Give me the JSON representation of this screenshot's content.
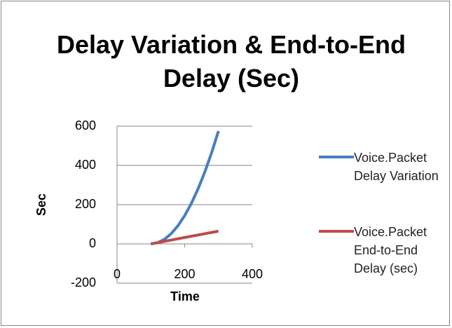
{
  "chart_data": {
    "type": "line",
    "title": "Delay Variation & End-to-End Delay (Sec)",
    "x_label": "Time",
    "y_label": "Sec",
    "x": [
      100,
      120,
      140,
      160,
      180,
      200,
      220,
      240,
      260,
      280,
      300
    ],
    "series": [
      {
        "name": "Voice.Packet Delay Variation",
        "color": "#4a7ebb",
        "values": [
          0,
          6,
          23,
          52,
          92,
          144,
          207,
          282,
          368,
          466,
          575
        ]
      },
      {
        "name": "Voice.Packet End-to-End Delay (sec)",
        "color": "#be4b48",
        "values": [
          0,
          6.5,
          13,
          19.5,
          26,
          32.5,
          39,
          45.5,
          52,
          58.5,
          65
        ]
      }
    ],
    "xlim": [
      0,
      400
    ],
    "xticks": [
      0,
      200,
      400
    ],
    "ylim": [
      -200,
      600
    ],
    "yticks": [
      -200,
      0,
      200,
      400,
      600
    ],
    "grid": true,
    "legend": "right"
  }
}
